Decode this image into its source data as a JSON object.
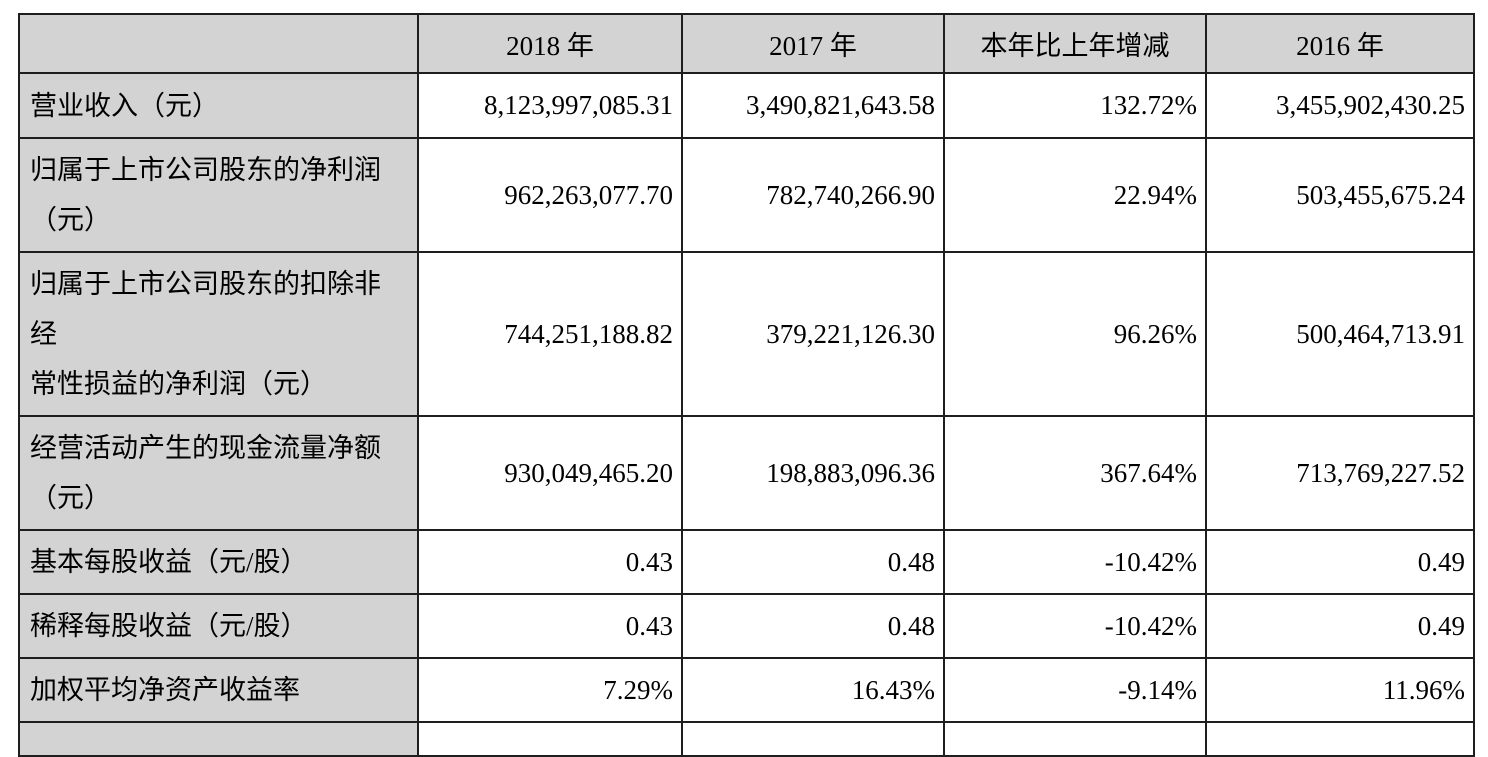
{
  "colors": {
    "shaded_cell_bg": "#d3d3d3",
    "value_cell_bg": "#ffffff",
    "grid_border": "#1e1e1e",
    "text": "#000000",
    "page_bg": "#ffffff"
  },
  "table": {
    "columns": [
      "",
      "2018 年",
      "2017 年",
      "本年比上年增减",
      "2016 年"
    ],
    "rows": [
      {
        "label": "营业收入（元）",
        "values": [
          "8,123,997,085.31",
          "3,490,821,643.58",
          "132.72%",
          "3,455,902,430.25"
        ]
      },
      {
        "label": "归属于上市公司股东的净利润\n（元）",
        "values": [
          "962,263,077.70",
          "782,740,266.90",
          "22.94%",
          "503,455,675.24"
        ]
      },
      {
        "label": "归属于上市公司股东的扣除非经\n常性损益的净利润（元）",
        "values": [
          "744,251,188.82",
          "379,221,126.30",
          "96.26%",
          "500,464,713.91"
        ]
      },
      {
        "label": "经营活动产生的现金流量净额\n（元）",
        "values": [
          "930,049,465.20",
          "198,883,096.36",
          "367.64%",
          "713,769,227.52"
        ]
      },
      {
        "label": "基本每股收益（元/股）",
        "values": [
          "0.43",
          "0.48",
          "-10.42%",
          "0.49"
        ]
      },
      {
        "label": "稀释每股收益（元/股）",
        "values": [
          "0.43",
          "0.48",
          "-10.42%",
          "0.49"
        ]
      },
      {
        "label": "加权平均净资产收益率",
        "values": [
          "7.29%",
          "16.43%",
          "-9.14%",
          "11.96%"
        ]
      }
    ]
  }
}
